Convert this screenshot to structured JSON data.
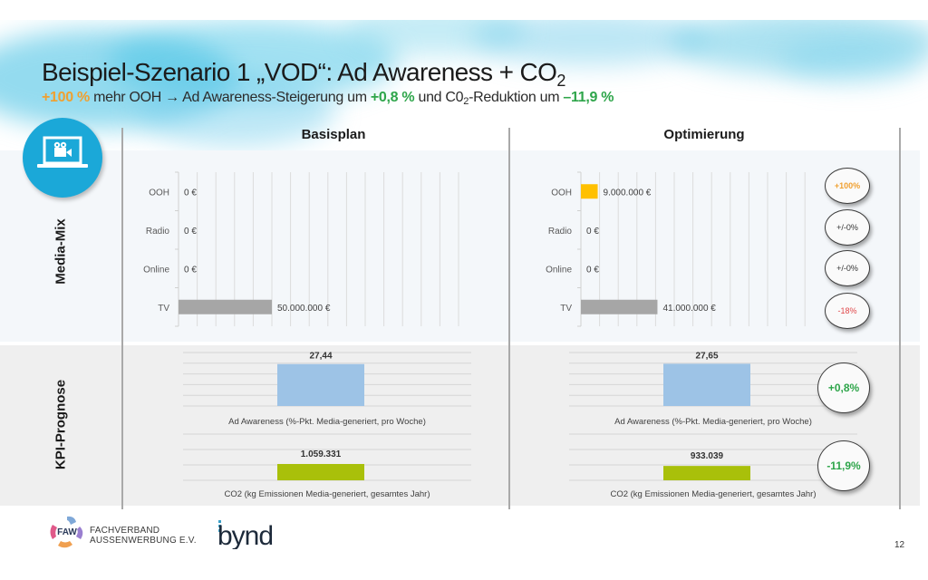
{
  "title": {
    "main": "Beispiel-Szenario 1 „VOD“: Ad Awareness + CO",
    "main_sub": "2"
  },
  "subtitle": {
    "part1": "+100 %",
    "part2": " mehr OOH ",
    "arrow": "→",
    "part3": " Ad Awareness-Steigerung um ",
    "part4": "+0,8 %",
    "part5": " und C0",
    "part5_sub": "2",
    "part6": "-Reduktion um ",
    "part7": "–11,9 %"
  },
  "columns": {
    "basis": "Basisplan",
    "optimierung": "Optimierung"
  },
  "rows": {
    "media_mix": "Media-Mix",
    "kpi": "KPI-Prognose"
  },
  "icon": "video-laptop-icon",
  "colors": {
    "accent_blue": "#1ba8d8",
    "orange": "#f0a030",
    "green": "#2ea54a",
    "red": "#e0484a",
    "tv_bar": "#a6a6a6",
    "ooh_bar": "#ffc000",
    "awareness_bar": "#9dc3e6",
    "co2_bar": "#a9c00a"
  },
  "badges": {
    "ooh": "+100%",
    "radio": "+/-0%",
    "online": "+/-0%",
    "tv": "-18%",
    "awareness": "+0,8%",
    "co2": "-11,9%"
  },
  "chart_data": [
    {
      "type": "bar",
      "orientation": "horizontal",
      "title": "Basisplan",
      "categories": [
        "OOH",
        "Radio",
        "Online",
        "TV"
      ],
      "values": [
        0,
        0,
        0,
        50000000
      ],
      "value_labels": [
        "0 €",
        "0 €",
        "0 €",
        "50.000.000 €"
      ],
      "xlim": [
        0,
        150000000
      ],
      "grid": true
    },
    {
      "type": "bar",
      "orientation": "horizontal",
      "title": "Optimierung",
      "categories": [
        "OOH",
        "Radio",
        "Online",
        "TV"
      ],
      "values": [
        9000000,
        0,
        0,
        41000000
      ],
      "value_labels": [
        "9.000.000 €",
        "0 €",
        "0 €",
        "41.000.000 €"
      ],
      "xlim": [
        0,
        150000000
      ],
      "grid": true
    },
    {
      "type": "bar",
      "title": "Basisplan",
      "categories": [
        "Ad Awareness (%-Pkt. Media-generiert, pro Woche)"
      ],
      "values": [
        27.44
      ],
      "value_labels": [
        "27,44"
      ],
      "ylim": [
        0,
        35
      ],
      "grid": true
    },
    {
      "type": "bar",
      "title": "Basisplan",
      "categories": [
        "CO2 (kg Emissionen Media-generiert, gesamtes Jahr)"
      ],
      "values": [
        1059331
      ],
      "value_labels": [
        "1.059.331"
      ],
      "ylim": [
        0,
        3000000
      ],
      "grid": true
    },
    {
      "type": "bar",
      "title": "Optimierung",
      "categories": [
        "Ad Awareness (%-Pkt. Media-generiert, pro Woche)"
      ],
      "values": [
        27.65
      ],
      "value_labels": [
        "27,65"
      ],
      "ylim": [
        0,
        35
      ],
      "grid": true
    },
    {
      "type": "bar",
      "title": "Optimierung",
      "categories": [
        "CO2 (kg Emissionen Media-generiert, gesamtes Jahr)"
      ],
      "values": [
        933039
      ],
      "value_labels": [
        "933.039"
      ],
      "ylim": [
        0,
        3000000
      ],
      "grid": true
    }
  ],
  "footer": {
    "faw_logo_text": "FAW",
    "faw_line1": "FACHVERBAND",
    "faw_line2": "AUSSENWERBUNG E.V.",
    "bynd_logo": "bynd",
    "page_number": "12"
  }
}
